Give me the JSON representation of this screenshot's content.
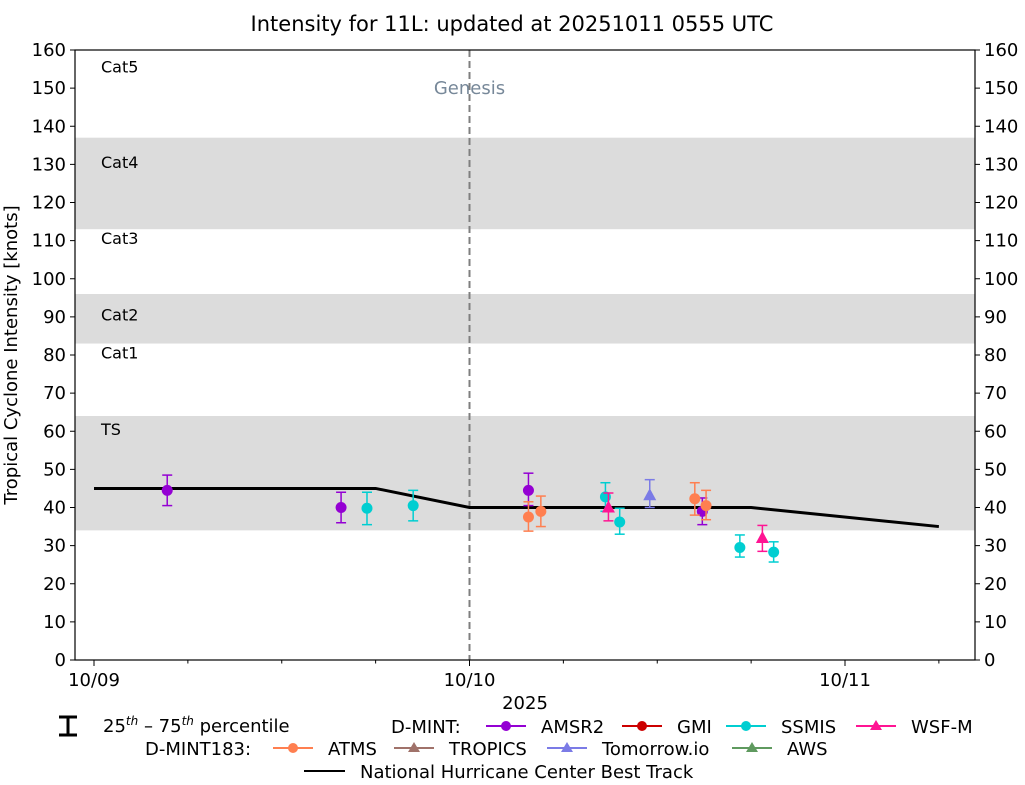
{
  "chart_data": {
    "type": "scatter",
    "title": "Intensity for 11L: updated at 20251011 0555 UTC",
    "xlabel": "2025",
    "ylabel": "Tropical Cyclone Intensity [knots]",
    "ylim": [
      0,
      160
    ],
    "xlim_days": [
      -0.05,
      2.35
    ],
    "x_ticks": [
      {
        "day": 0,
        "label": "10/09"
      },
      {
        "day": 1,
        "label": "10/10"
      },
      {
        "day": 2,
        "label": "10/11"
      }
    ],
    "x_minor_tick_step_days": 0.25,
    "y_ticks": [
      0,
      10,
      20,
      30,
      40,
      50,
      60,
      70,
      80,
      90,
      100,
      110,
      120,
      130,
      140,
      150,
      160
    ],
    "category_bands": [
      {
        "label": "TS",
        "low": 34,
        "high": 64,
        "shaded": true,
        "label_y": 60
      },
      {
        "label": "Cat1",
        "low": 64,
        "high": 83,
        "shaded": false,
        "label_y": 80
      },
      {
        "label": "Cat2",
        "low": 83,
        "high": 96,
        "shaded": true,
        "label_y": 90
      },
      {
        "label": "Cat3",
        "low": 96,
        "high": 113,
        "shaded": false,
        "label_y": 110
      },
      {
        "label": "Cat4",
        "low": 113,
        "high": 137,
        "shaded": true,
        "label_y": 130
      },
      {
        "label": "Cat5",
        "low": 137,
        "high": 160,
        "shaded": false,
        "label_y": 155
      }
    ],
    "genesis": {
      "day": 1.0,
      "label": "Genesis",
      "label_y": 150
    },
    "best_track": {
      "name": "National Hurricane Center Best Track",
      "color": "#000000",
      "points": [
        [
          0,
          45
        ],
        [
          0.75,
          45
        ],
        [
          1.0,
          40
        ],
        [
          1.75,
          40
        ],
        [
          2.25,
          35
        ]
      ]
    },
    "series": [
      {
        "name": "AMSR2",
        "group": "D-MINT",
        "color": "#9400d3",
        "marker": "circle",
        "points": [
          {
            "day": 0.195,
            "value": 44.5,
            "p25": 40.5,
            "p75": 48.5
          },
          {
            "day": 0.658,
            "value": 40.0,
            "p25": 36.0,
            "p75": 44.0
          },
          {
            "day": 1.157,
            "value": 44.5,
            "p25": 40.5,
            "p75": 49.0
          },
          {
            "day": 1.62,
            "value": 39.0,
            "p25": 35.5,
            "p75": 42.5
          }
        ]
      },
      {
        "name": "GMI",
        "group": "D-MINT",
        "color": "#cc0000",
        "marker": "circle",
        "points": []
      },
      {
        "name": "SSMIS",
        "group": "D-MINT",
        "color": "#00ced1",
        "marker": "circle",
        "points": [
          {
            "day": 0.727,
            "value": 39.8,
            "p25": 35.5,
            "p75": 44.0
          },
          {
            "day": 0.85,
            "value": 40.5,
            "p25": 36.5,
            "p75": 44.5
          },
          {
            "day": 1.362,
            "value": 42.8,
            "p25": 39.0,
            "p75": 46.5
          },
          {
            "day": 1.4,
            "value": 36.2,
            "p25": 33.0,
            "p75": 39.8
          },
          {
            "day": 1.72,
            "value": 29.5,
            "p25": 27.0,
            "p75": 32.8
          },
          {
            "day": 1.81,
            "value": 28.3,
            "p25": 25.7,
            "p75": 31.0
          }
        ]
      },
      {
        "name": "WSF-M",
        "group": "D-MINT",
        "color": "#ff1493",
        "marker": "triangle",
        "points": [
          {
            "day": 1.37,
            "value": 40.0,
            "p25": 36.5,
            "p75": 43.8
          },
          {
            "day": 1.78,
            "value": 32.0,
            "p25": 28.5,
            "p75": 35.3
          }
        ]
      },
      {
        "name": "ATMS",
        "group": "D-MINT183",
        "color": "#ff7f50",
        "marker": "circle",
        "points": [
          {
            "day": 1.157,
            "value": 37.5,
            "p25": 33.8,
            "p75": 41.5
          },
          {
            "day": 1.19,
            "value": 39.0,
            "p25": 35.0,
            "p75": 43.0
          },
          {
            "day": 1.6,
            "value": 42.3,
            "p25": 38.0,
            "p75": 46.5
          },
          {
            "day": 1.63,
            "value": 40.5,
            "p25": 36.8,
            "p75": 44.5
          }
        ]
      },
      {
        "name": "TROPICS",
        "group": "D-MINT183",
        "color": "#a0726a",
        "marker": "triangle",
        "points": []
      },
      {
        "name": "Tomorrow.io",
        "group": "D-MINT183",
        "color": "#7b7be6",
        "marker": "triangle",
        "points": [
          {
            "day": 1.48,
            "value": 43.2,
            "p25": 40.0,
            "p75": 47.3
          }
        ]
      },
      {
        "name": "AWS",
        "group": "D-MINT183",
        "color": "#5f9a5f",
        "marker": "triangle",
        "points": []
      }
    ],
    "legend": {
      "placement": "bottom",
      "percentile_label_base": [
        "25",
        "th",
        " – 75",
        "th",
        " percentile"
      ],
      "group_labels": {
        "dmint": "D-MINT:",
        "dmint183": "D-MINT183:"
      },
      "row1": [
        "AMSR2",
        "GMI",
        "SSMIS",
        "WSF-M"
      ],
      "row2": [
        "ATMS",
        "TROPICS",
        "Tomorrow.io",
        "AWS"
      ],
      "row3": "National Hurricane Center Best Track"
    },
    "grid": false,
    "band_color": "#dcdcdc",
    "genesis_color": "#778899"
  }
}
